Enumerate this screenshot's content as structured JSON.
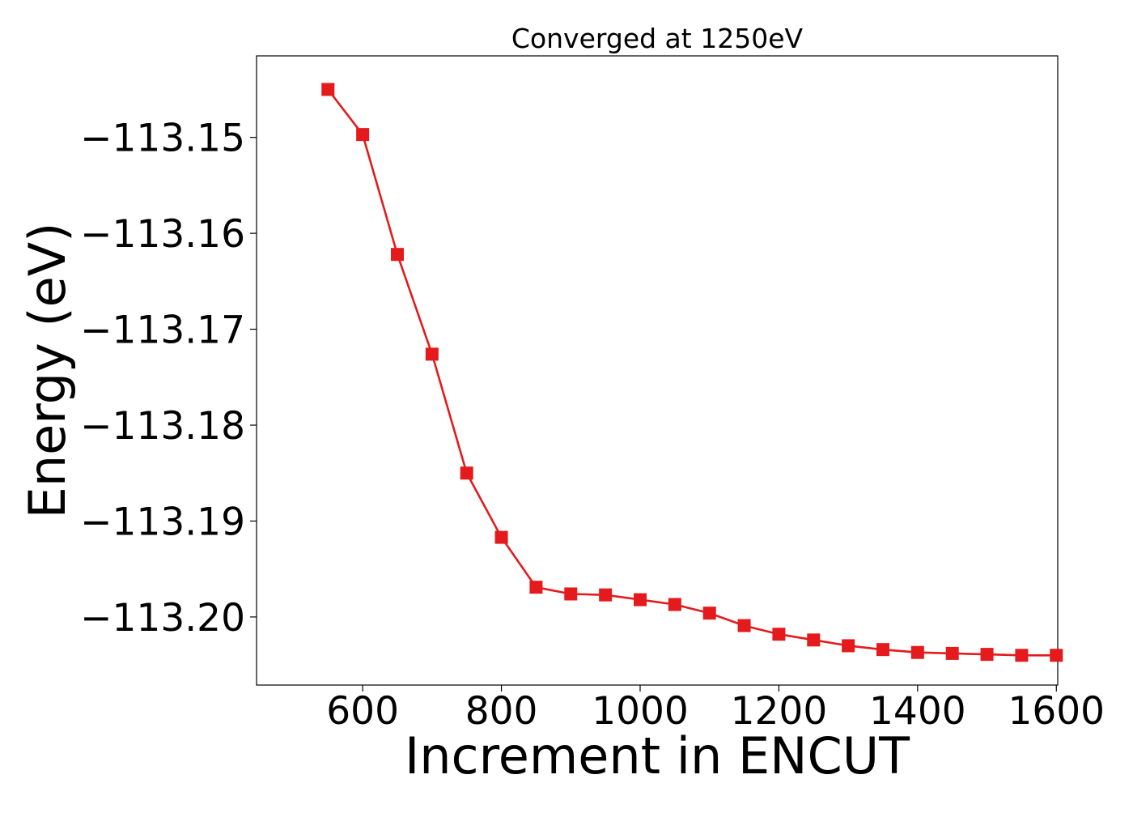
{
  "chart_data": {
    "type": "line",
    "title": "Converged at 1250eV",
    "xlabel": "Increment in ENCUT",
    "ylabel": "Energy (eV)",
    "xlim": [
      447,
      1602
    ],
    "ylim": [
      -113.2071,
      -113.1415
    ],
    "x_ticks": [
      600,
      800,
      1000,
      1200,
      1400,
      1600
    ],
    "x_tick_labels": [
      "600",
      "800",
      "1000",
      "1200",
      "1400",
      "1600"
    ],
    "y_ticks": [
      -113.15,
      -113.16,
      -113.17,
      -113.18,
      -113.19,
      -113.2
    ],
    "y_tick_labels": [
      "−113.15",
      "−113.16",
      "−113.17",
      "−113.18",
      "−113.19",
      "−113.20"
    ],
    "grid": false,
    "legend": "none",
    "series": [
      {
        "color": "#e41a1c",
        "marker": "square",
        "x": [
          550,
          600,
          650,
          700,
          750,
          800,
          850,
          900,
          950,
          1000,
          1050,
          1100,
          1150,
          1200,
          1250,
          1300,
          1350,
          1400,
          1450,
          1500,
          1550,
          1600
        ],
        "values": [
          -113.145,
          -113.1497,
          -113.1622,
          -113.1726,
          -113.185,
          -113.1917,
          -113.1969,
          -113.1976,
          -113.1977,
          -113.1982,
          -113.1987,
          -113.1996,
          -113.2009,
          -113.2018,
          -113.2024,
          -113.203,
          -113.2034,
          -113.2037,
          -113.2038,
          -113.2039,
          -113.204,
          -113.204
        ]
      }
    ]
  }
}
